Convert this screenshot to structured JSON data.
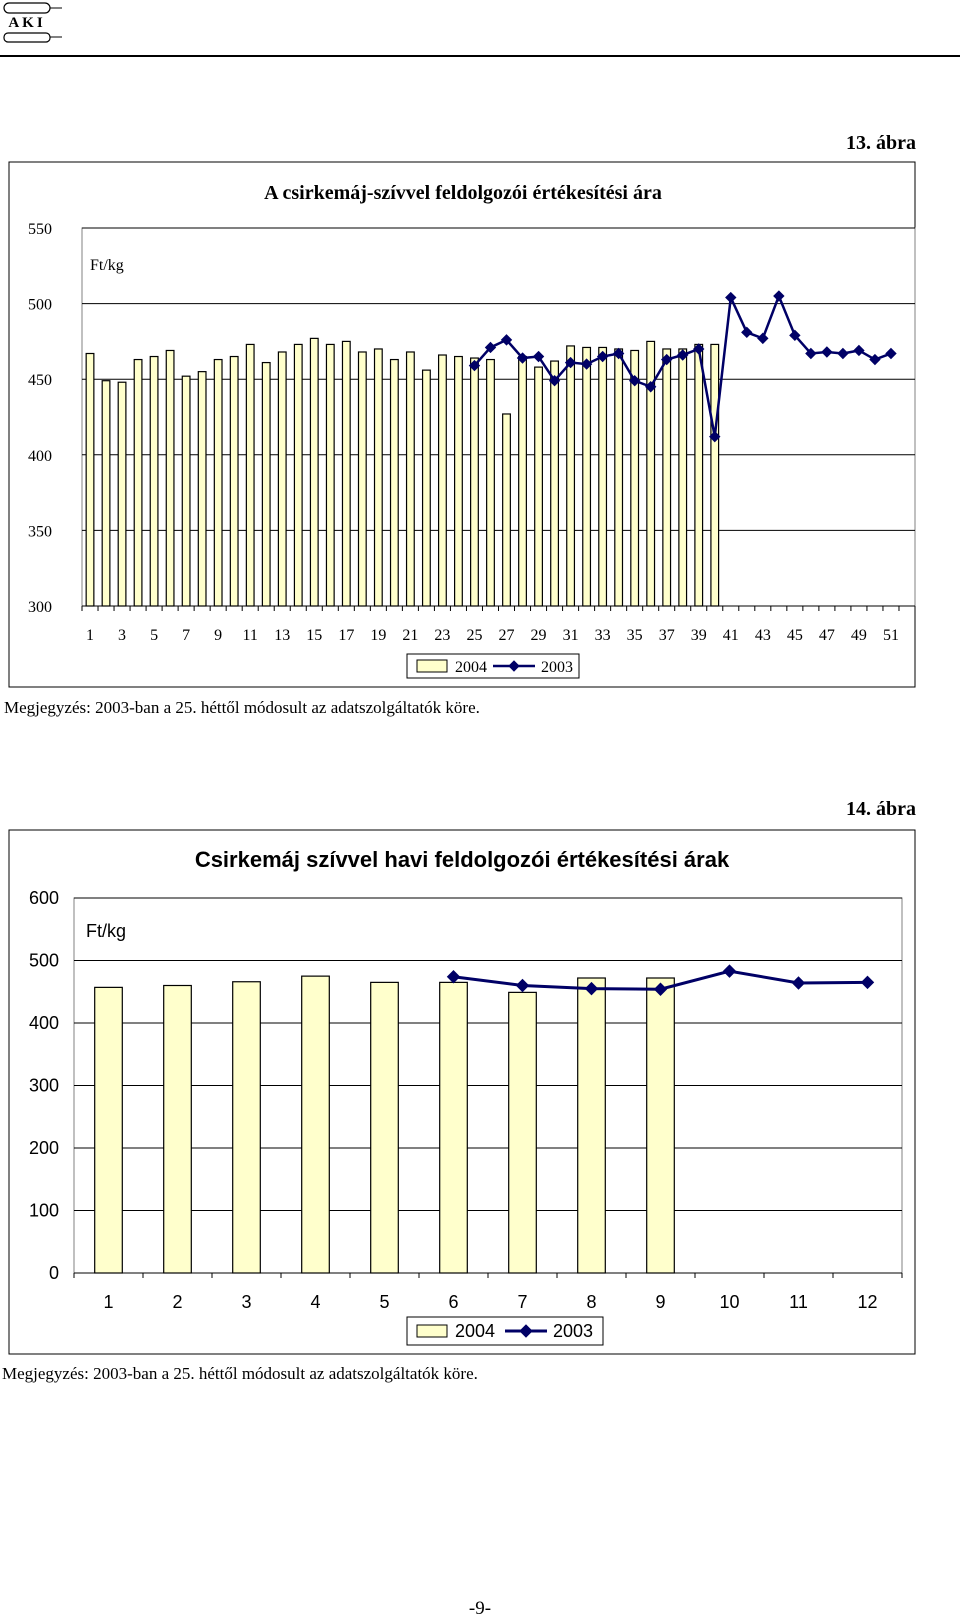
{
  "header": {
    "logo_text": "AKI"
  },
  "figure13": {
    "label": "13. ábra",
    "note": "Megjegyzés: 2003-ban a 25. héttől módosult az adatszolgáltatók köre."
  },
  "figure14": {
    "label": "14. ábra",
    "note": "Megjegyzés: 2003-ban a 25. héttől módosult az adatszolgáltatók köre."
  },
  "page_number": "-9-",
  "chart_data": [
    {
      "type": "bar",
      "title": "A csirkemáj-szívvel feldolgozói értékesítési ára",
      "ylabel": "Ft/kg",
      "xlabel": "",
      "ylim": [
        300,
        550
      ],
      "yticks": [
        300,
        350,
        400,
        450,
        500,
        550
      ],
      "x": [
        1,
        2,
        3,
        4,
        5,
        6,
        7,
        8,
        9,
        10,
        11,
        12,
        13,
        14,
        15,
        16,
        17,
        18,
        19,
        20,
        21,
        22,
        23,
        24,
        25,
        26,
        27,
        28,
        29,
        30,
        31,
        32,
        33,
        34,
        35,
        36,
        37,
        38,
        39,
        40,
        41,
        42,
        43,
        44,
        45,
        46,
        47,
        48,
        49,
        50,
        51,
        52
      ],
      "xtick_labels": [
        "1",
        "3",
        "5",
        "7",
        "9",
        "11",
        "13",
        "15",
        "17",
        "19",
        "21",
        "23",
        "25",
        "27",
        "29",
        "31",
        "33",
        "35",
        "37",
        "39",
        "41",
        "43",
        "45",
        "47",
        "49",
        "51"
      ],
      "grid": true,
      "legend_position": "bottom",
      "series": [
        {
          "name": "2004",
          "kind": "bar",
          "color": "#FFFFCC",
          "values": [
            467,
            449,
            448,
            463,
            465,
            469,
            452,
            455,
            463,
            465,
            473,
            461,
            468,
            473,
            477,
            473,
            475,
            468,
            470,
            463,
            468,
            456,
            466,
            465,
            464,
            463,
            427,
            465,
            458,
            462,
            472,
            471,
            471,
            470,
            469,
            475,
            470,
            470,
            473,
            473,
            null,
            null,
            null,
            null,
            null,
            null,
            null,
            null,
            null,
            null,
            null,
            null
          ]
        },
        {
          "name": "2003",
          "kind": "line",
          "color": "#000066",
          "marker": "diamond",
          "values": [
            null,
            null,
            null,
            null,
            null,
            null,
            null,
            null,
            null,
            null,
            null,
            null,
            null,
            null,
            null,
            null,
            null,
            null,
            null,
            null,
            null,
            null,
            null,
            null,
            459,
            471,
            476,
            464,
            465,
            449,
            461,
            460,
            465,
            467,
            449,
            445,
            463,
            466,
            470,
            412,
            504,
            481,
            477,
            505,
            479,
            467,
            468,
            467,
            469,
            463,
            467,
            null
          ]
        }
      ]
    },
    {
      "type": "bar",
      "title": "Csirkemáj szívvel havi feldolgozói értékesítési árak",
      "ylabel": "Ft/kg",
      "xlabel": "",
      "ylim": [
        0,
        600
      ],
      "yticks": [
        0,
        100,
        200,
        300,
        400,
        500,
        600
      ],
      "categories": [
        "1",
        "2",
        "3",
        "4",
        "5",
        "6",
        "7",
        "8",
        "9",
        "10",
        "11",
        "12"
      ],
      "grid": true,
      "legend_position": "bottom",
      "series": [
        {
          "name": "2004",
          "kind": "bar",
          "color": "#FFFFCC",
          "values": [
            457,
            460,
            466,
            475,
            465,
            465,
            449,
            472,
            472,
            null,
            null,
            null
          ]
        },
        {
          "name": "2003",
          "kind": "line",
          "color": "#000066",
          "marker": "diamond",
          "values": [
            null,
            null,
            null,
            null,
            null,
            474,
            460,
            455,
            454,
            483,
            464,
            465
          ]
        }
      ]
    }
  ]
}
